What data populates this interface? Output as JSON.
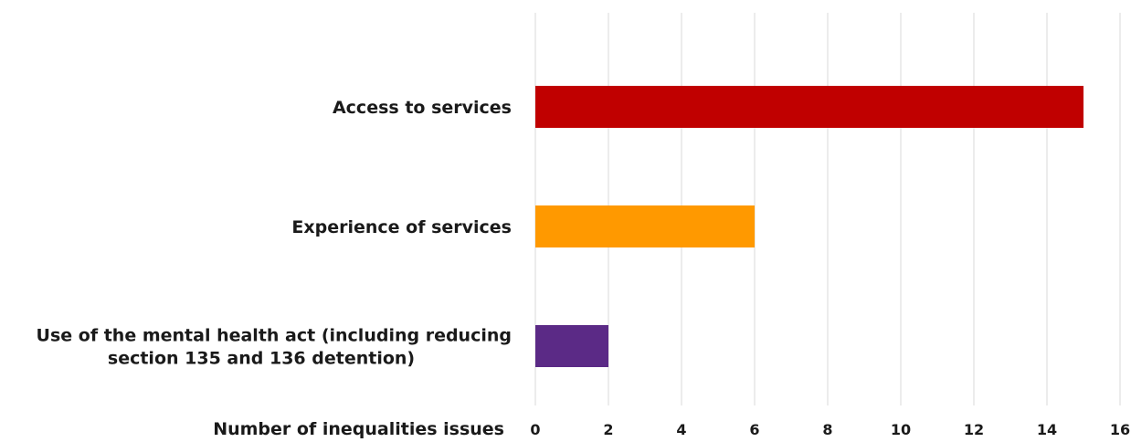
{
  "chart_data": {
    "type": "bar",
    "orientation": "horizontal",
    "categories": [
      "Access to services",
      "Experience of services",
      "Use of the mental health act (including reducing section 135 and 136 detention)"
    ],
    "category_lines": [
      [
        "Access to services"
      ],
      [
        "Experience of services"
      ],
      [
        "Use of the mental health act (including reducing",
        "section 135 and 136 detention)"
      ]
    ],
    "values": [
      15,
      6,
      2
    ],
    "colors": [
      "#c00000",
      "#ff9900",
      "#5b2a86"
    ],
    "xlabel": "Number of inequalities issues",
    "ylabel": "",
    "title": "",
    "xlim": [
      0,
      16
    ],
    "xticks": [
      "0",
      "2",
      "4",
      "6",
      "8",
      "10",
      "12",
      "14",
      "16"
    ],
    "grid": "vertical"
  }
}
